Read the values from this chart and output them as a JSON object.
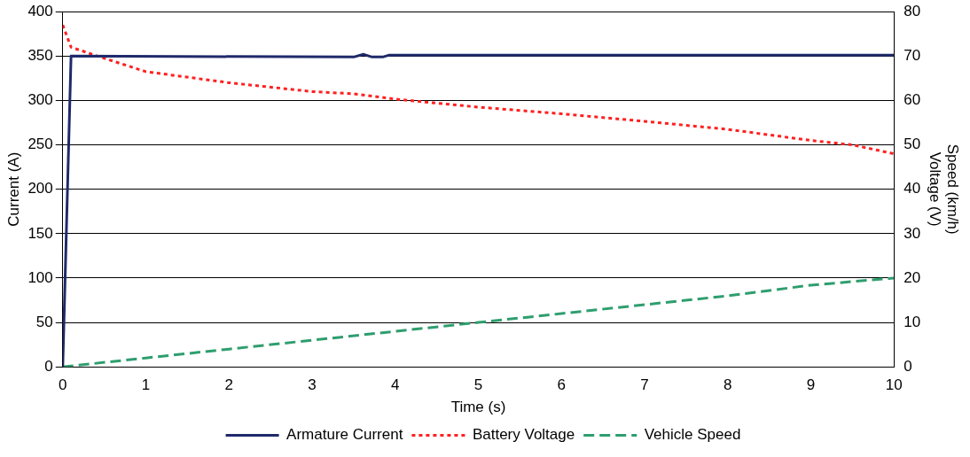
{
  "chart_data": {
    "type": "line",
    "xlabel": "Time (s)",
    "ylabel": "Current (A)",
    "y2label": "Speed (km/h)\nVoltage (V)",
    "xlim": [
      0,
      10
    ],
    "xticks": [
      0,
      1,
      2,
      3,
      4,
      5,
      6,
      7,
      8,
      9,
      10
    ],
    "ylim": [
      0,
      400
    ],
    "yticks": [
      0,
      50,
      100,
      150,
      200,
      250,
      300,
      350,
      400
    ],
    "y2lim": [
      0,
      80
    ],
    "y2ticks": [
      0,
      10,
      20,
      30,
      40,
      50,
      60,
      70,
      80
    ],
    "grid": "y",
    "legend": "bottom",
    "marker": "none",
    "series": [
      {
        "name": "Armature Current",
        "color": "#1f2a6b",
        "line_style": "solid",
        "x": [
          0,
          0.1,
          3.5,
          3.62,
          3.72,
          3.85,
          3.92,
          10
        ],
        "values": [
          0,
          350,
          349,
          352,
          349,
          349,
          351,
          351
        ]
      },
      {
        "name": "Battery Voltage",
        "color": "#ff2020",
        "line_style": "dotted",
        "axis": "y2",
        "x": [
          0,
          0.1,
          0.5,
          1,
          2,
          3,
          3.5,
          4,
          5,
          6,
          7,
          8,
          9,
          9.5,
          10
        ],
        "values": [
          77,
          72,
          69.5,
          66.5,
          64,
          62,
          61.5,
          60.3,
          58.5,
          57,
          55.3,
          53.5,
          51,
          50,
          48
        ]
      },
      {
        "name": "Vehicle Speed",
        "color": "#2e9e6e",
        "line_style": "dashed",
        "axis": "y2",
        "x": [
          0,
          1,
          2,
          3,
          4,
          5,
          6,
          7,
          8,
          9,
          10
        ],
        "values": [
          0,
          2,
          4,
          6,
          8,
          10,
          12,
          14,
          16,
          18.4,
          20
        ]
      }
    ]
  }
}
